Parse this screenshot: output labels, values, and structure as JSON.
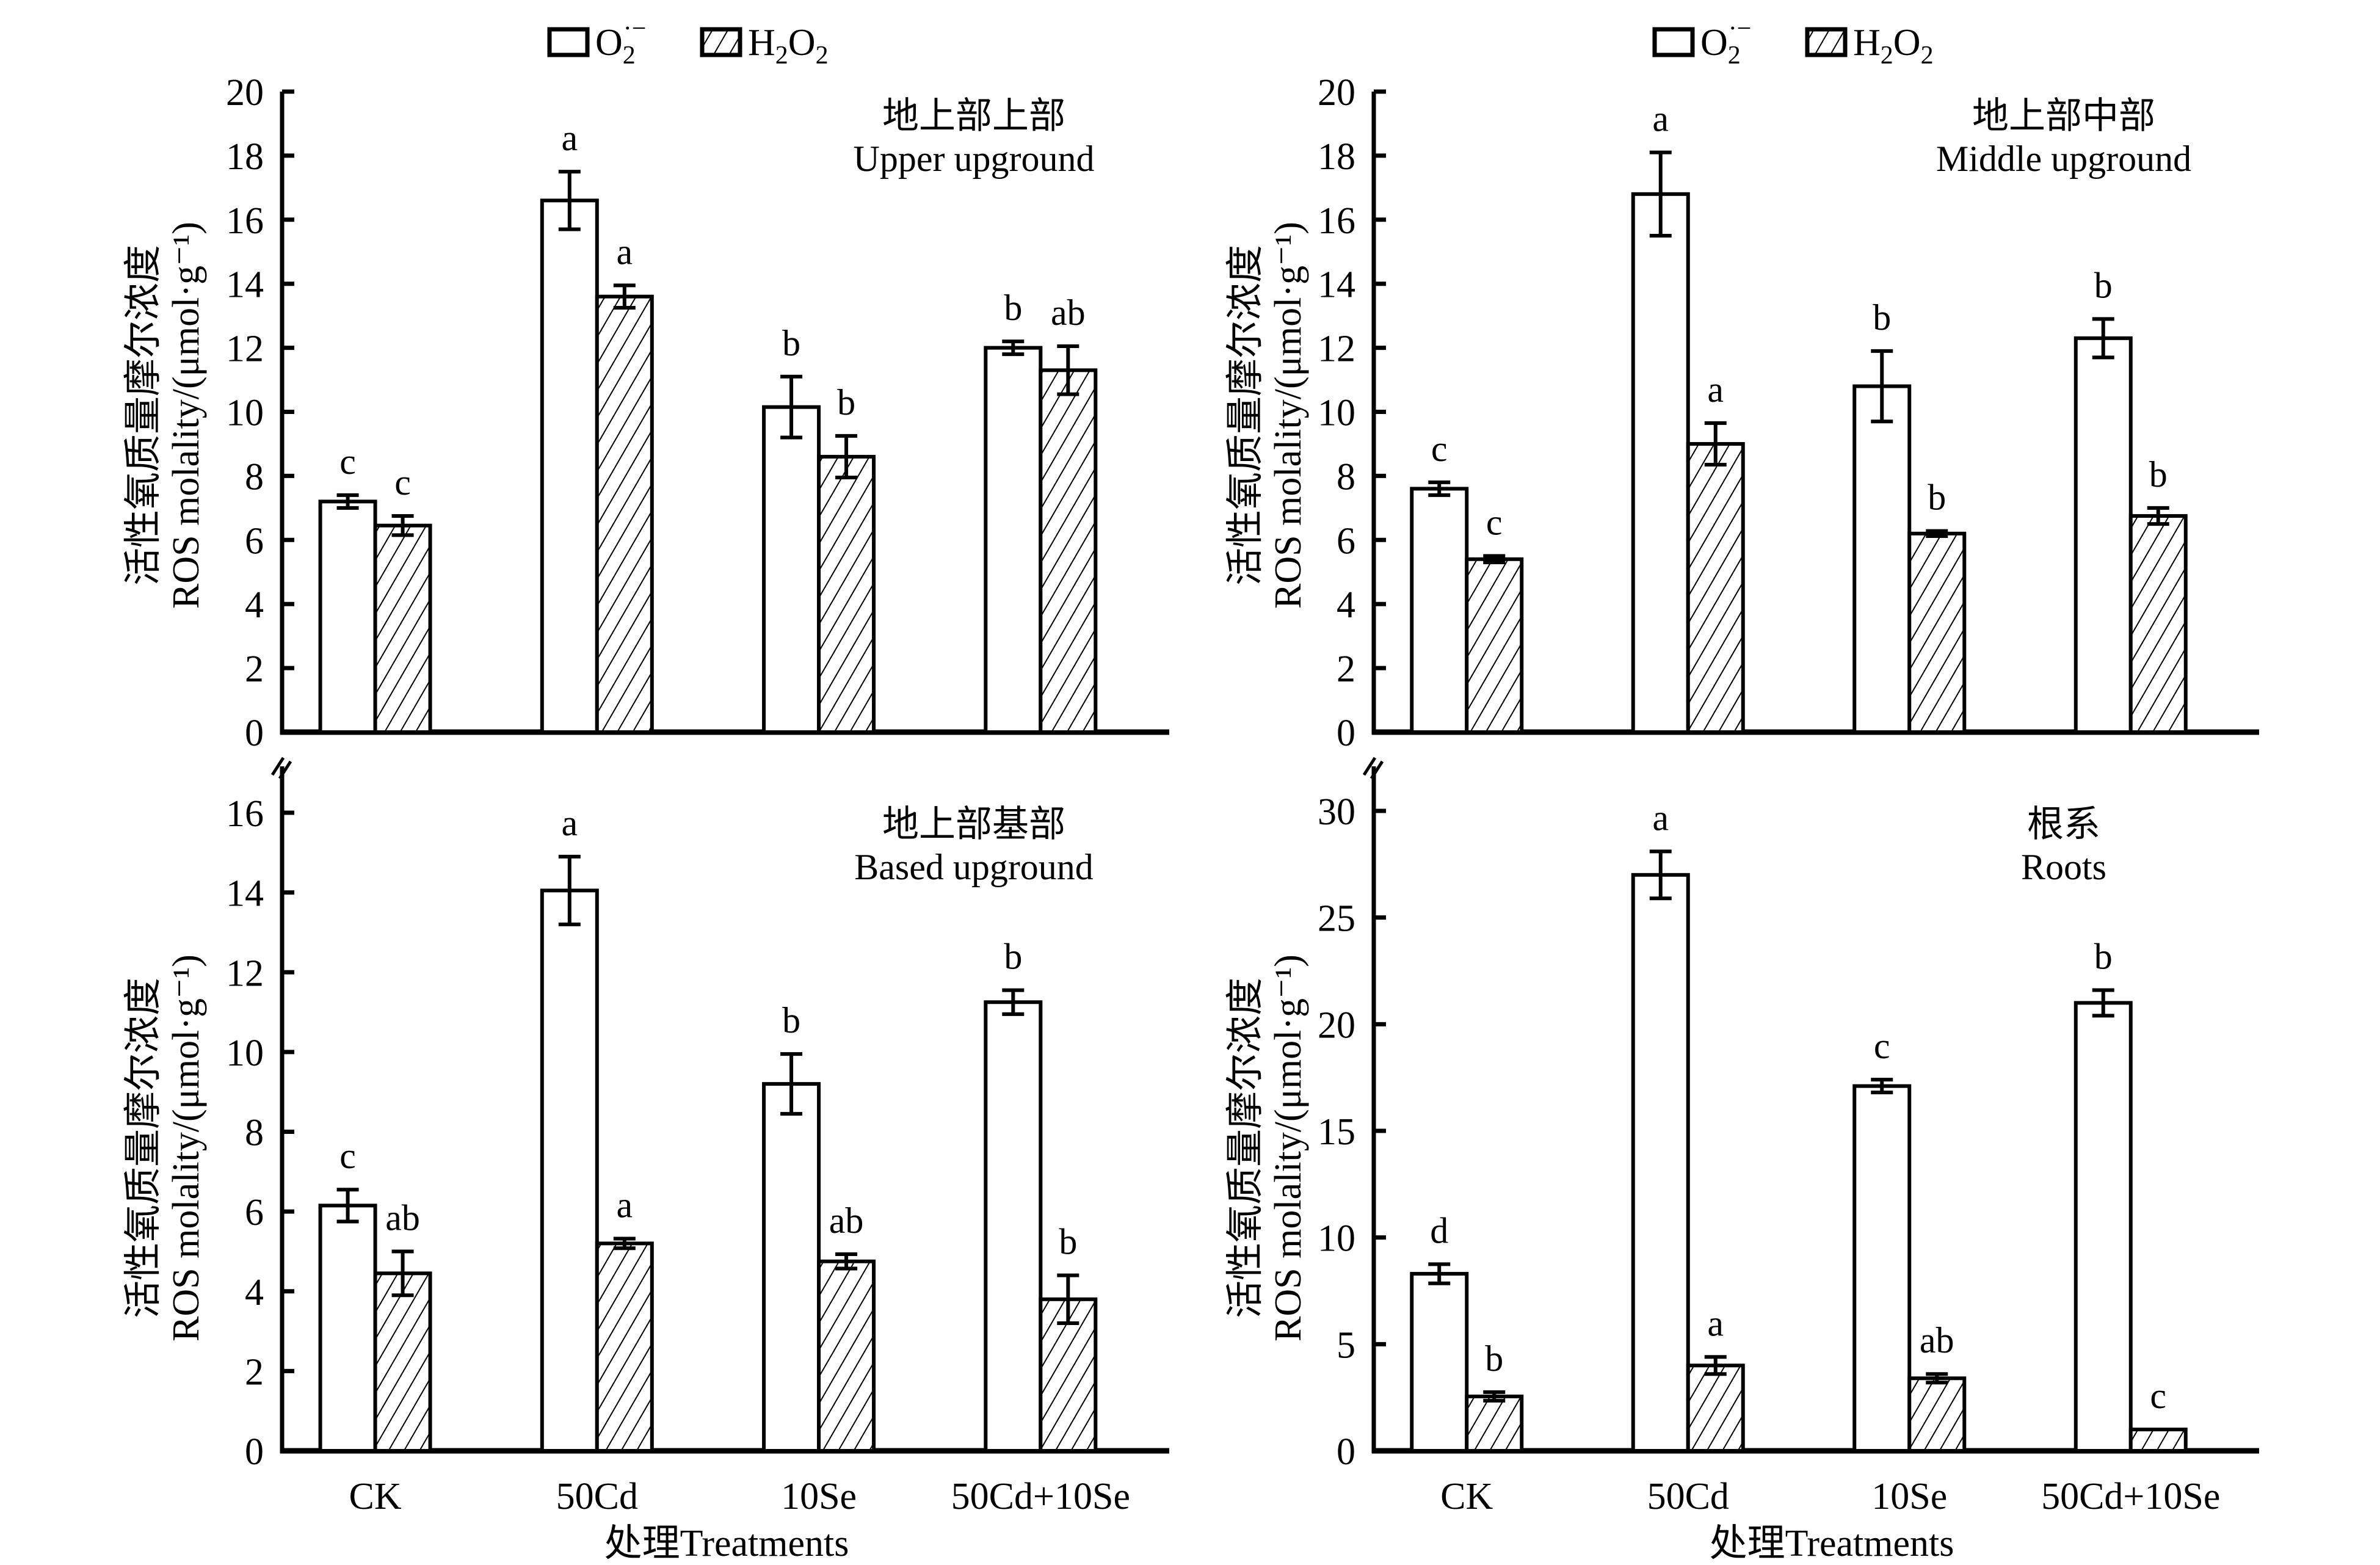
{
  "figure": {
    "legend": [
      {
        "key": "o2",
        "label": "O2·−",
        "fill": "white"
      },
      {
        "key": "h2o2",
        "label": "H2O2",
        "fill": "hatched"
      }
    ],
    "xlabel": "处理Treatments",
    "ylabel_cn": "活性氧质量摩尔浓度",
    "ylabel_en": "ROS molality/(μmol·g⁻¹)",
    "colors": {
      "stroke": "#000000",
      "fill": "#ffffff"
    }
  },
  "chart_data": [
    {
      "type": "bar",
      "panel": "top-left",
      "title_cn": "地上部上部",
      "title_en": "Upper upground",
      "categories": [
        "CK",
        "50Cd",
        "10Se",
        "50Cd+10Se"
      ],
      "series": [
        {
          "name": "O2·−",
          "values": [
            7.2,
            16.6,
            10.15,
            12.0
          ],
          "errors": [
            0.2,
            0.9,
            0.95,
            0.2
          ],
          "letters": [
            "c",
            "a",
            "b",
            "b"
          ]
        },
        {
          "name": "H2O2",
          "values": [
            6.45,
            13.6,
            8.6,
            11.3
          ],
          "errors": [
            0.3,
            0.35,
            0.65,
            0.75
          ],
          "letters": [
            "c",
            "a",
            "b",
            "ab"
          ]
        }
      ],
      "yticks": [
        0,
        2,
        4,
        6,
        8,
        10,
        12,
        14,
        16,
        18,
        20
      ],
      "ylim": [
        0,
        20
      ],
      "show_xticklabels": false
    },
    {
      "type": "bar",
      "panel": "top-right",
      "title_cn": "地上部中部",
      "title_en": "Middle upground",
      "categories": [
        "CK",
        "50Cd",
        "10Se",
        "50Cd+10Se"
      ],
      "series": [
        {
          "name": "O2·−",
          "values": [
            7.6,
            16.8,
            10.8,
            12.3
          ],
          "errors": [
            0.2,
            1.3,
            1.1,
            0.6
          ],
          "letters": [
            "c",
            "a",
            "b",
            "b"
          ]
        },
        {
          "name": "H2O2",
          "values": [
            5.4,
            9.0,
            6.2,
            6.75
          ],
          "errors": [
            0.1,
            0.65,
            0.08,
            0.25
          ],
          "letters": [
            "c",
            "a",
            "b",
            "b"
          ]
        }
      ],
      "yticks": [
        0,
        2,
        4,
        6,
        8,
        10,
        12,
        14,
        16,
        18,
        20
      ],
      "ylim": [
        0,
        20
      ],
      "show_xticklabels": false
    },
    {
      "type": "bar",
      "panel": "bottom-left",
      "title_cn": "地上部基部",
      "title_en": "Based upground",
      "categories": [
        "CK",
        "50Cd",
        "10Se",
        "50Cd+10Se"
      ],
      "series": [
        {
          "name": "O2·−",
          "values": [
            6.15,
            14.05,
            9.2,
            11.25
          ],
          "errors": [
            0.4,
            0.85,
            0.75,
            0.3
          ],
          "letters": [
            "c",
            "a",
            "b",
            "b"
          ]
        },
        {
          "name": "H2O2",
          "values": [
            4.45,
            5.2,
            4.75,
            3.8
          ],
          "errors": [
            0.55,
            0.12,
            0.18,
            0.6
          ],
          "letters": [
            "ab",
            "a",
            "ab",
            "b"
          ]
        }
      ],
      "yticks": [
        0,
        2,
        4,
        6,
        8,
        10,
        12,
        14,
        16
      ],
      "ylim": [
        0,
        16
      ],
      "show_xticklabels": true
    },
    {
      "type": "bar",
      "panel": "bottom-right",
      "title_cn": "根系",
      "title_en": "Roots",
      "categories": [
        "CK",
        "50Cd",
        "10Se",
        "50Cd+10Se"
      ],
      "series": [
        {
          "name": "O2·−",
          "values": [
            8.3,
            27.0,
            17.1,
            21.0
          ],
          "errors": [
            0.45,
            1.1,
            0.3,
            0.6
          ],
          "letters": [
            "d",
            "a",
            "c",
            "b"
          ]
        },
        {
          "name": "H2O2",
          "values": [
            2.55,
            4.0,
            3.4,
            1.0
          ],
          "errors": [
            0.2,
            0.4,
            0.2,
            0.0
          ],
          "letters": [
            "b",
            "a",
            "ab",
            "c"
          ]
        }
      ],
      "yticks": [
        0,
        5,
        10,
        15,
        20,
        25,
        30
      ],
      "ylim": [
        0,
        30
      ],
      "show_xticklabels": true
    }
  ]
}
